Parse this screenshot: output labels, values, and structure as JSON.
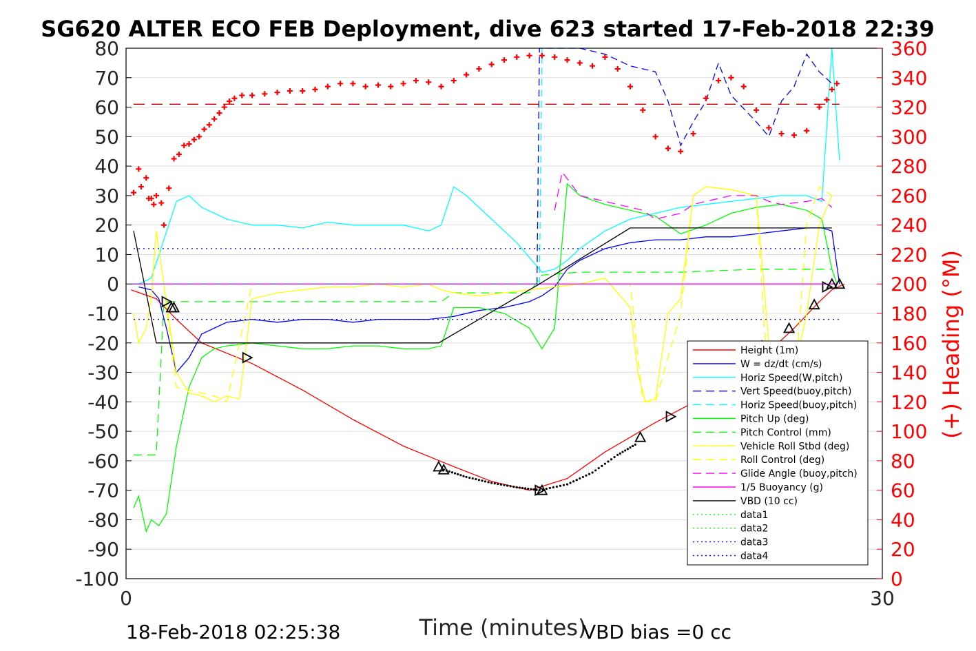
{
  "chart_data": {
    "type": "line",
    "title": "SG620 ALTER ECO FEB Deployment, dive 623 started 17-Feb-2018 22:39",
    "xlabel": "Time (minutes)",
    "ylabel_right": "(+) Heading (°M)",
    "xlim": [
      0,
      30
    ],
    "ylim_left": [
      -100,
      80
    ],
    "ylim_right": [
      0,
      360
    ],
    "x_ticks": [
      "0",
      "30"
    ],
    "y_ticks_left": [
      "80",
      "70",
      "60",
      "50",
      "40",
      "30",
      "20",
      "10",
      "0",
      "-10",
      "-20",
      "-30",
      "-40",
      "-50",
      "-60",
      "-70",
      "-80",
      "-90",
      "-100"
    ],
    "y_ticks_right": [
      "360",
      "340",
      "320",
      "300",
      "280",
      "260",
      "240",
      "220",
      "200",
      "180",
      "160",
      "140",
      "120",
      "100",
      "80",
      "60",
      "40",
      "20",
      "0"
    ],
    "footer_left": "18-Feb-2018 02:25:38",
    "footer_right": "VBD bias =0 cc",
    "grid": "horizontal",
    "legend_position": "right-lower",
    "colors": {
      "height": "#ff0000",
      "w": "#0000ff",
      "cyan": "#00ffff",
      "green": "#00ff00",
      "yellow": "#ffff00",
      "magenta": "#ff00ff",
      "black": "#000000",
      "heading": "#ff0000",
      "right_axis": "#ff0000"
    },
    "legend": [
      {
        "label": "Height (1m)",
        "color": "#ff0000",
        "style": "solid"
      },
      {
        "label": "W = dz/dt (cm/s)",
        "color": "#0000ff",
        "style": "solid"
      },
      {
        "label": "Horiz Speed(W,pitch)",
        "color": "#00ffff",
        "style": "solid"
      },
      {
        "label": "Vert Speed(buoy,pitch)",
        "color": "#0000ff",
        "style": "dashed"
      },
      {
        "label": "Horiz Speed(buoy,pitch)",
        "color": "#00ffff",
        "style": "dashed"
      },
      {
        "label": "Pitch Up (deg)",
        "color": "#00ff00",
        "style": "solid"
      },
      {
        "label": "Pitch Control (mm)",
        "color": "#00ff00",
        "style": "dashed"
      },
      {
        "label": "Vehicle Roll Stbd (deg)",
        "color": "#ffff00",
        "style": "solid"
      },
      {
        "label": "Roll Control (deg)",
        "color": "#ffff00",
        "style": "dashed"
      },
      {
        "label": "Glide Angle (buoy,pitch)",
        "color": "#ff00ff",
        "style": "dashed"
      },
      {
        "label": "1/5 Buoyancy (g)",
        "color": "#ff00ff",
        "style": "solid"
      },
      {
        "label": "VBD (10 cc)",
        "color": "#000000",
        "style": "solid"
      },
      {
        "label": "data1",
        "color": "#00ff00",
        "style": "dotted"
      },
      {
        "label": "data2",
        "color": "#00ff00",
        "style": "dotted"
      },
      {
        "label": "data3",
        "color": "#0000ff",
        "style": "dotted"
      },
      {
        "label": "data4",
        "color": "#0000ff",
        "style": "dotted"
      }
    ],
    "series": [
      {
        "key": "height",
        "color": "#ff0000",
        "dash": "",
        "axis": "left",
        "x": [
          0.2,
          1.2,
          2.0,
          3.0,
          5.0,
          7.0,
          9.0,
          11.0,
          13.0,
          14.5,
          16.0,
          17.5,
          19.0,
          21.0,
          23.0,
          25.0,
          26.5,
          27.5,
          28.0,
          28.5
        ],
        "y": [
          -2,
          -5,
          -12,
          -20,
          -27,
          -36,
          -46,
          -55,
          -62,
          -67,
          -70,
          -66,
          -57,
          -47,
          -38,
          -27,
          -15,
          -6,
          -2,
          0
        ]
      },
      {
        "key": "w",
        "color": "#0000ff",
        "dash": "",
        "axis": "left",
        "x": [
          0.5,
          1.0,
          1.3,
          1.6,
          2.0,
          2.5,
          3.0,
          4.0,
          5.0,
          6.0,
          7.0,
          8.0,
          9.0,
          10.0,
          11.0,
          12.0,
          13.0,
          14.0,
          15.0,
          16.0,
          16.5,
          17.0,
          17.5,
          18.0,
          19.0,
          20.0,
          21.0,
          22.0,
          23.0,
          24.0,
          25.0,
          26.0,
          27.0,
          27.6,
          28.0,
          28.3
        ],
        "y": [
          -1,
          -2,
          -5,
          -15,
          -30,
          -25,
          -17,
          -13,
          -12,
          -13,
          -12,
          -12,
          -13,
          -12,
          -12,
          -12,
          -11,
          -9,
          -8,
          -6,
          -4,
          -1,
          5,
          8,
          12,
          14,
          15,
          15,
          16,
          16,
          17,
          18,
          19,
          19,
          18,
          0
        ]
      },
      {
        "key": "horiz_w",
        "color": "#00ffff",
        "dash": "",
        "axis": "left",
        "x": [
          0.5,
          1.0,
          1.5,
          2.0,
          2.5,
          3.0,
          4.0,
          5.0,
          6.0,
          7.0,
          8.0,
          9.0,
          10.0,
          11.0,
          12.0,
          12.5,
          13.0,
          13.5,
          14.0,
          14.5,
          15.0,
          15.5,
          16.0,
          16.5,
          17.0,
          17.5,
          18.0,
          19.0,
          20.0,
          21.0,
          22.0,
          23.0,
          24.0,
          25.0,
          26.0,
          27.0,
          27.6,
          28.0,
          28.3
        ],
        "y": [
          0,
          2,
          15,
          28,
          30,
          26,
          22,
          20,
          20,
          19,
          21,
          20,
          20,
          20,
          18,
          20,
          33,
          30,
          26,
          22,
          18,
          14,
          9,
          4,
          5,
          8,
          12,
          18,
          22,
          24,
          26,
          27,
          28,
          29,
          30,
          30,
          28,
          80,
          42
        ]
      },
      {
        "key": "vert_buoy",
        "color": "#0000ff",
        "dash": "10,6",
        "axis": "left",
        "x": [
          16.3,
          16.4,
          16.6,
          17.0,
          18.0,
          19.0,
          20.0,
          21.0,
          21.5,
          22.0,
          22.5,
          23.0,
          23.5,
          24.0,
          25.0,
          25.5,
          26.0,
          26.5,
          27.0,
          27.5,
          28.0
        ],
        "y": [
          0,
          80,
          80,
          80,
          80,
          78,
          74,
          72,
          62,
          47,
          55,
          62,
          75,
          64,
          55,
          50,
          62,
          67,
          78,
          72,
          68
        ]
      },
      {
        "key": "horiz_buoy",
        "color": "#00ffff",
        "dash": "10,6",
        "axis": "left",
        "x": [
          16.4,
          16.5,
          16.7,
          17.0,
          17.5,
          18.0,
          18.5
        ],
        "y": [
          0,
          80,
          80,
          80,
          80,
          80,
          80
        ]
      },
      {
        "key": "pitch_up",
        "color": "#00ff00",
        "dash": "",
        "axis": "left",
        "x": [
          0.3,
          0.5,
          0.8,
          1.0,
          1.3,
          1.6,
          2.0,
          2.5,
          3.0,
          3.5,
          4.0,
          5.0,
          6.0,
          7.0,
          8.0,
          9.0,
          10.0,
          11.0,
          12.0,
          12.5,
          13.0,
          14.0,
          15.0,
          16.0,
          16.5,
          17.0,
          17.5,
          18.0,
          19.0,
          20.0,
          21.0,
          21.5,
          22.0,
          23.0,
          24.0,
          25.0,
          26.0,
          27.0,
          27.6,
          28.0,
          28.2
        ],
        "y": [
          -76,
          -72,
          -84,
          -80,
          -82,
          -78,
          -55,
          -35,
          -25,
          -22,
          -21,
          -20,
          -21,
          -22,
          -22,
          -21,
          -21,
          -22,
          -22,
          -21,
          -8,
          -8,
          -10,
          -15,
          -22,
          -15,
          34,
          30,
          27,
          25,
          23,
          20,
          17,
          20,
          24,
          26,
          27,
          25,
          22,
          5,
          0
        ]
      },
      {
        "key": "pitch_ctrl",
        "color": "#00ff00",
        "dash": "12,8",
        "axis": "left",
        "x": [
          0.3,
          1.2,
          1.5,
          1.8,
          5.0,
          9.0,
          12.5,
          13.0,
          16.0,
          16.5,
          18.0,
          22.0,
          25.0,
          28.0
        ],
        "y": [
          -58,
          -58,
          -6,
          -6,
          -6,
          -6,
          -6,
          -3,
          -3,
          3,
          4,
          4,
          5,
          5
        ]
      },
      {
        "key": "roll",
        "color": "#ffff00",
        "dash": "",
        "axis": "left",
        "x": [
          0.3,
          0.5,
          0.8,
          1.0,
          1.2,
          1.5,
          2.0,
          2.5,
          3.0,
          3.5,
          4.0,
          4.5,
          5.0,
          6.0,
          7.0,
          8.0,
          9.0,
          10.0,
          11.0,
          12.0,
          12.5,
          13.0,
          14.0,
          15.0,
          16.0,
          17.0,
          18.0,
          19.0,
          20.0,
          20.3,
          20.6,
          21.0,
          21.5,
          22.0,
          22.5,
          23.0,
          24.0,
          25.0,
          25.5,
          25.8,
          26.0,
          26.5,
          27.0,
          27.5,
          28.0
        ],
        "y": [
          -10,
          -20,
          -15,
          -5,
          18,
          0,
          -30,
          -37,
          -38,
          -40,
          -38,
          -39,
          -5,
          -3,
          -2,
          -1,
          -1,
          0,
          -1,
          0,
          -2,
          -3,
          -4,
          -3,
          -2,
          -1,
          0,
          2,
          -8,
          -30,
          -40,
          -39,
          -10,
          -5,
          30,
          33,
          32,
          30,
          -20,
          -40,
          -38,
          -30,
          -10,
          20,
          30
        ]
      },
      {
        "key": "roll_ctrl",
        "color": "#ffff00",
        "dash": "12,8",
        "axis": "left",
        "x": [
          0.5,
          1.0,
          1.5,
          2.0,
          2.5,
          3.0,
          3.5,
          4.0,
          5.0,
          9.0,
          12.0,
          13.0,
          16.0,
          20.0,
          20.5,
          21.0,
          22.0,
          22.5,
          23.0,
          24.0,
          25.0,
          25.5,
          26.0,
          26.5,
          27.0,
          27.5,
          28.0
        ],
        "y": [
          0,
          0,
          0,
          -35,
          -36,
          -37,
          -38,
          -40,
          0,
          0,
          0,
          0,
          0,
          0,
          -40,
          -40,
          -10,
          30,
          33,
          32,
          30,
          -40,
          -40,
          -38,
          20,
          33,
          30
        ]
      },
      {
        "key": "glide",
        "color": "#ff00ff",
        "dash": "12,8",
        "axis": "left",
        "x": [
          17.0,
          17.3,
          18.0,
          19.0,
          20.0,
          20.5,
          21.0,
          22.0,
          22.5,
          23.0,
          24.0,
          25.0,
          25.5,
          26.0,
          27.0,
          27.6,
          28.0
        ],
        "y": [
          25,
          38,
          30,
          28,
          26,
          25,
          22,
          24,
          27,
          28,
          30,
          30,
          28,
          27,
          28,
          29,
          26
        ]
      },
      {
        "key": "buoyancy",
        "color": "#ff00ff",
        "dash": "",
        "axis": "left",
        "x": [
          0.2,
          16.4,
          16.6,
          28.0,
          28.2
        ],
        "y": [
          0,
          0,
          0,
          0,
          0
        ]
      },
      {
        "key": "purple_dash",
        "color": "#7f3fff",
        "dash": "12,8",
        "axis": "left",
        "x": [
          0.2,
          16.4
        ],
        "y": [
          0,
          0
        ]
      },
      {
        "key": "vbd",
        "color": "#000000",
        "dash": "",
        "axis": "left",
        "x": [
          0.3,
          1.2,
          12.4,
          16.4,
          20.0,
          28.0
        ],
        "y": [
          18,
          -20,
          -20,
          0,
          19,
          19
        ]
      },
      {
        "key": "data3",
        "color": "#0000ff",
        "dash": "2,5",
        "axis": "left",
        "x": [
          0.3,
          28.3
        ],
        "y": [
          12,
          12
        ]
      },
      {
        "key": "data4",
        "color": "#0000ff",
        "dash": "2,5",
        "axis": "left",
        "x": [
          0.3,
          28.3
        ],
        "y": [
          -12,
          -12
        ]
      },
      {
        "key": "heading_ref",
        "color": "#cc0000",
        "dash": "16,10",
        "axis": "right",
        "x": [
          0.3,
          28.3
        ],
        "y": [
          322,
          322
        ]
      }
    ],
    "heading": {
      "color": "#ff0000",
      "marker": "plus",
      "x": [
        0.3,
        0.5,
        0.6,
        0.8,
        0.9,
        1.0,
        1.1,
        1.2,
        1.4,
        1.5,
        1.7,
        1.9,
        2.1,
        2.3,
        2.5,
        2.7,
        2.9,
        3.1,
        3.3,
        3.5,
        3.7,
        3.9,
        4.1,
        4.3,
        4.6,
        5.0,
        5.5,
        6.0,
        6.5,
        7.0,
        7.5,
        8.0,
        8.5,
        9.0,
        9.5,
        10.0,
        10.5,
        11.0,
        11.5,
        12.0,
        12.5,
        13.0,
        13.5,
        14.0,
        14.5,
        15.0,
        15.5,
        16.0,
        16.5,
        17.0,
        17.5,
        18.0,
        18.5,
        19.0,
        19.5,
        20.0,
        20.5,
        21.0,
        21.5,
        22.0,
        22.5,
        23.0,
        23.5,
        24.0,
        24.5,
        25.0,
        25.5,
        26.0,
        26.5,
        27.0,
        27.5,
        27.8,
        28.0,
        28.2
      ],
      "y": [
        262,
        278,
        266,
        272,
        258,
        258,
        254,
        260,
        255,
        240,
        265,
        285,
        288,
        294,
        295,
        298,
        300,
        305,
        308,
        312,
        316,
        320,
        324,
        326,
        328,
        328,
        329,
        330,
        331,
        331,
        332,
        334,
        336,
        336,
        334,
        335,
        334,
        336,
        338,
        337,
        334,
        338,
        342,
        346,
        349,
        352,
        354,
        355,
        355,
        354,
        352,
        350,
        348,
        354,
        346,
        334,
        318,
        300,
        292,
        290,
        302,
        326,
        338,
        340,
        334,
        318,
        306,
        302,
        301,
        304,
        320,
        325,
        332,
        336
      ]
    },
    "markers": {
      "x": [
        1.6,
        1.8,
        1.9,
        4.8,
        12.4,
        12.6,
        16.4,
        16.5,
        20.4,
        21.6,
        23.1,
        24.3,
        25.4,
        26.3,
        27.3,
        27.8,
        28.0,
        28.3
      ],
      "y": [
        -6,
        -8,
        -8,
        -25,
        -62,
        -63,
        -70,
        -70,
        -52,
        -45,
        -38,
        -29,
        -21,
        -15,
        -7,
        -1,
        0,
        0
      ]
    },
    "dotted_segment": {
      "x": [
        12.6,
        13.5,
        14.5,
        15.5,
        16.4,
        17.5,
        18.5,
        19.5,
        20.3
      ],
      "y": [
        -63,
        -65.5,
        -67.5,
        -69,
        -70,
        -68,
        -64,
        -58,
        -54
      ]
    }
  }
}
